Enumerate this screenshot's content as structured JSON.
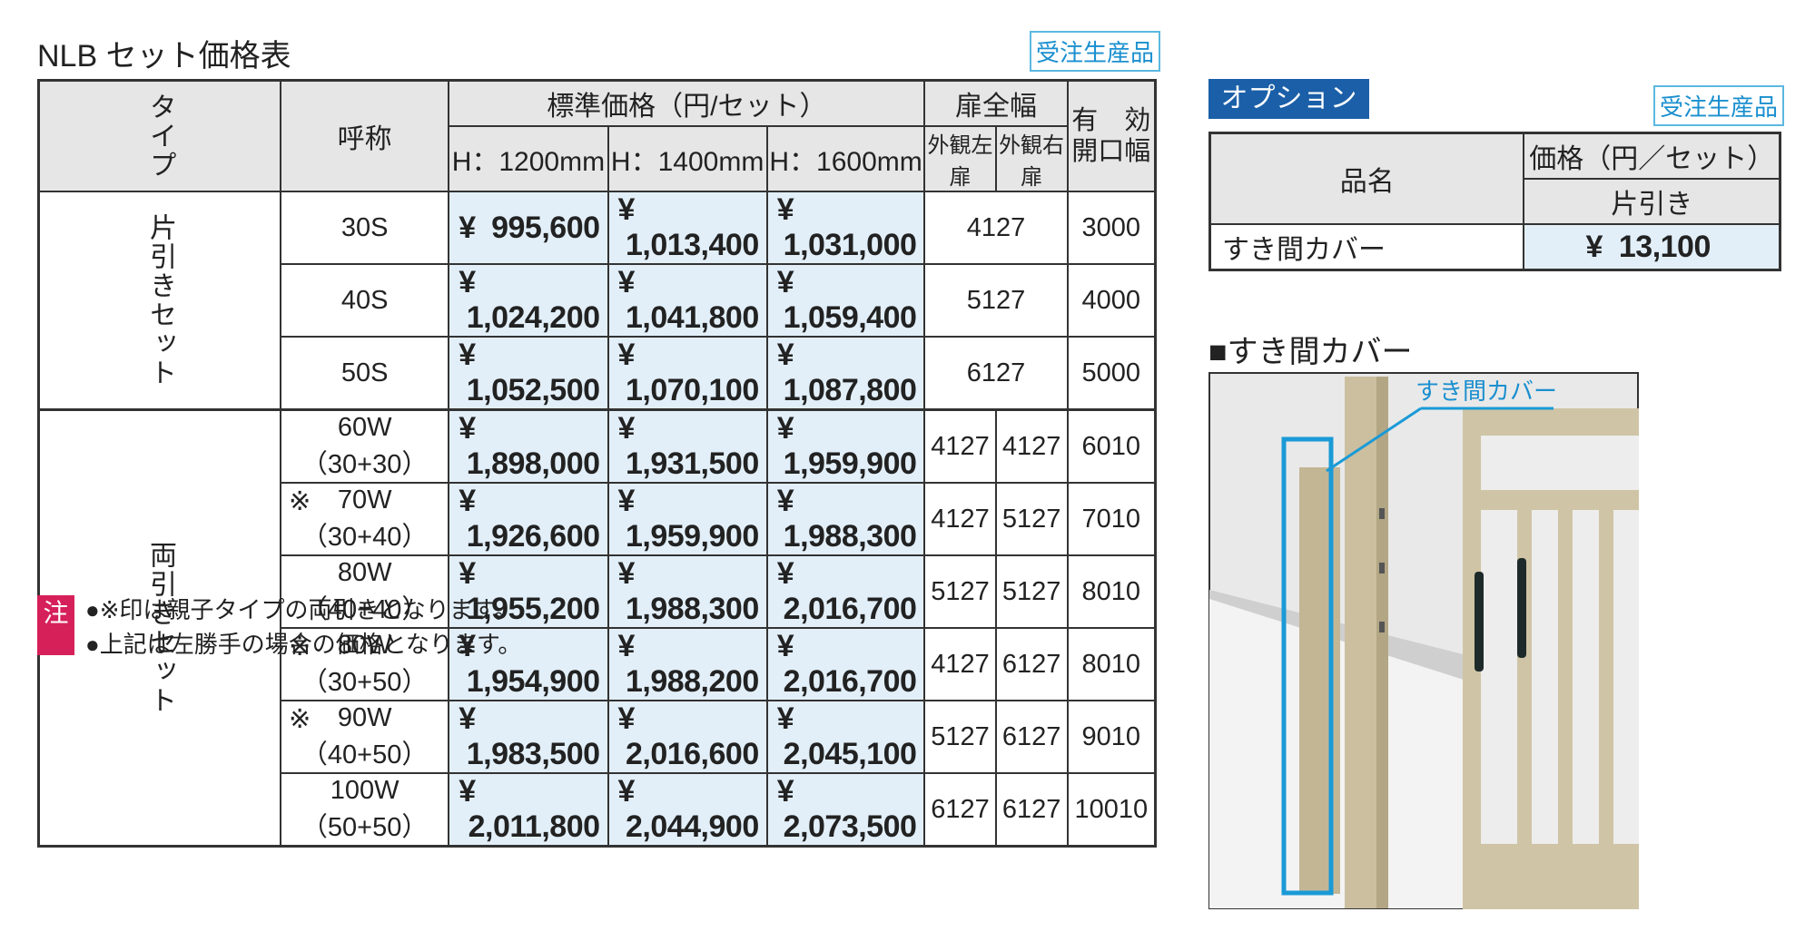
{
  "title": "NLB セット価格表",
  "badge": "受注生産品",
  "table": {
    "currency": "¥",
    "header": {
      "type": "タイプ",
      "name": "呼称",
      "price": "標準価格（円/セット）",
      "heights": [
        "H：1200mm",
        "H：1400mm",
        "H：1600mm"
      ],
      "door": "扉全幅",
      "door_left": "外観左扉",
      "door_right": "外観右扉",
      "opening": "有　効 開口幅"
    },
    "groups": [
      {
        "type": "片引きセット",
        "rows": [
          {
            "name": "30S",
            "prices": [
              "995,600",
              "1,013,400",
              "1,031,000"
            ],
            "door": "4127",
            "opening": "3000"
          },
          {
            "name": "40S",
            "prices": [
              "1,024,200",
              "1,041,800",
              "1,059,400"
            ],
            "door": "5127",
            "opening": "4000"
          },
          {
            "name": "50S",
            "prices": [
              "1,052,500",
              "1,070,100",
              "1,087,800"
            ],
            "door": "6127",
            "opening": "5000"
          }
        ]
      },
      {
        "type": "両引きセット",
        "rows": [
          {
            "name": "60W（30+30）",
            "prices": [
              "1,898,000",
              "1,931,500",
              "1,959,900"
            ],
            "door_left": "4127",
            "door_right": "4127",
            "opening": "6010"
          },
          {
            "mark": "※",
            "name": "70W（30+40）",
            "prices": [
              "1,926,600",
              "1,959,900",
              "1,988,300"
            ],
            "door_left": "4127",
            "door_right": "5127",
            "opening": "7010"
          },
          {
            "name": "80W（40+40）",
            "prices": [
              "1,955,200",
              "1,988,300",
              "2,016,700"
            ],
            "door_left": "5127",
            "door_right": "5127",
            "opening": "8010"
          },
          {
            "mark": "※",
            "name": "80W（30+50）",
            "prices": [
              "1,954,900",
              "1,988,200",
              "2,016,700"
            ],
            "door_left": "4127",
            "door_right": "6127",
            "opening": "8010"
          },
          {
            "mark": "※",
            "name": "90W（40+50）",
            "prices": [
              "1,983,500",
              "2,016,600",
              "2,045,100"
            ],
            "door_left": "5127",
            "door_right": "6127",
            "opening": "9010"
          },
          {
            "name": "100W（50+50）",
            "prices": [
              "2,011,800",
              "2,044,900",
              "2,073,500"
            ],
            "door_left": "6127",
            "door_right": "6127",
            "opening": "10010"
          }
        ]
      }
    ]
  },
  "notes": {
    "label": "注",
    "lines": [
      "●※印は親子タイプの両引きとなります。",
      "●上記は左勝手の場合の価格となります。"
    ]
  },
  "option": {
    "label": "オプション",
    "badge": "受注生産品",
    "header": {
      "item": "品名",
      "price": "価格（円／セット）",
      "sub": "片引き"
    },
    "row": {
      "item": "すき間カバー",
      "price": "13,100"
    }
  },
  "figure": {
    "title": "■すき間カバー",
    "callout": "すき間カバー"
  }
}
